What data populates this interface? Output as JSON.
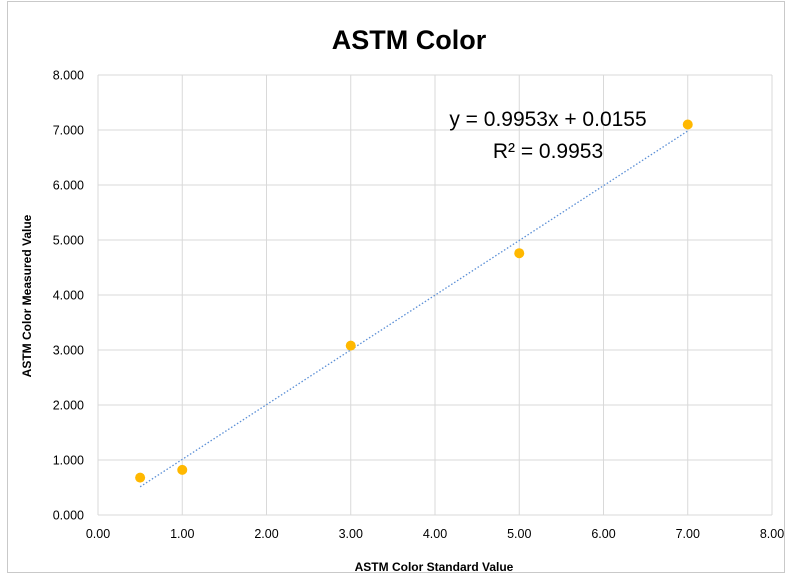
{
  "chart_data": {
    "type": "scatter",
    "title": "ASTM Color",
    "xlabel": "ASTM Color Standard Value",
    "ylabel": "ASTM Color Measured Value",
    "xlim": [
      0,
      8
    ],
    "ylim": [
      0,
      8
    ],
    "x_ticks": [
      "0.00",
      "1.00",
      "2.00",
      "3.00",
      "4.00",
      "5.00",
      "6.00",
      "7.00",
      "8.00"
    ],
    "y_ticks": [
      "0.000",
      "1.000",
      "2.000",
      "3.000",
      "4.000",
      "5.000",
      "6.000",
      "7.000",
      "8.000"
    ],
    "grid": true,
    "series": [
      {
        "x": [
          0.5,
          1.0,
          3.0,
          5.0,
          7.0
        ],
        "y": [
          0.68,
          0.82,
          3.08,
          4.76,
          7.1
        ],
        "color": "#ffb800"
      }
    ],
    "trendline": {
      "type": "linear",
      "slope": 0.9953,
      "intercept": 0.0155,
      "x_range": [
        0.5,
        7.0
      ],
      "color": "#5b8fd6",
      "style": "dotted"
    },
    "annotations": {
      "equation": "y = 0.9953x + 0.0155",
      "r_squared": "R² = 0.9953"
    }
  }
}
